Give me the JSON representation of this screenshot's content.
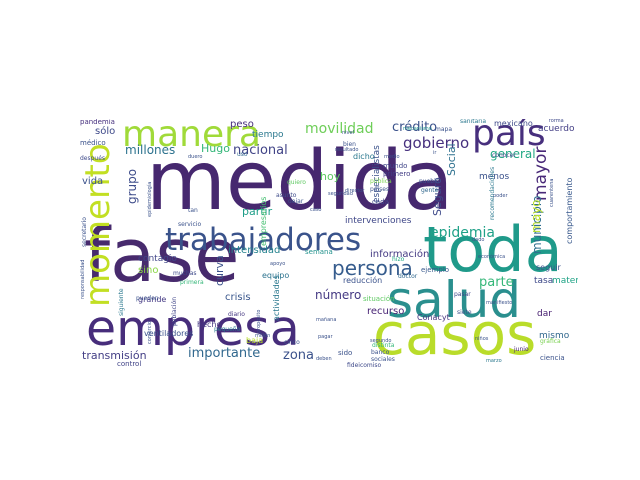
{
  "words": [
    {
      "id": "medida",
      "text": "medida",
      "color": "#46286f"
    },
    {
      "id": "fase",
      "text": "fase",
      "color": "#472a6d"
    },
    {
      "id": "toda",
      "text": "toda",
      "color": "#1f9a8a"
    },
    {
      "id": "casos",
      "text": "casos",
      "color": "#b9dc2a"
    },
    {
      "id": "empresa",
      "text": "empresa",
      "color": "#472d7b"
    },
    {
      "id": "salud",
      "text": "salud",
      "color": "#2a8f8e"
    },
    {
      "id": "manera",
      "text": "manera",
      "color": "#a0da39"
    },
    {
      "id": "pais",
      "text": "país",
      "color": "#472f7d"
    },
    {
      "id": "trabajadores",
      "text": "trabajadores",
      "color": "#3a538b"
    },
    {
      "id": "momento",
      "text": "momento",
      "color": "#c2df23"
    },
    {
      "id": "persona",
      "text": "persona",
      "color": "#365c8d"
    },
    {
      "id": "epidemia",
      "text": "epidemia",
      "color": "#1fa188"
    },
    {
      "id": "gobierno",
      "text": "gobierno",
      "color": "#46307e"
    },
    {
      "id": "movilidad",
      "text": "movilidad",
      "color": "#6ece58"
    },
    {
      "id": "credito",
      "text": "crédito",
      "color": "#3b528b"
    },
    {
      "id": "nacional",
      "text": "nacional",
      "color": "#414487"
    },
    {
      "id": "millones",
      "text": "millones",
      "color": "#2c728e"
    },
    {
      "id": "hugo",
      "text": "Hugo",
      "color": "#35b779"
    },
    {
      "id": "mayor",
      "text": "mayor",
      "color": "#482878"
    },
    {
      "id": "municipio",
      "text": "municipio",
      "color": "#2e6e8e"
    },
    {
      "id": "mayo",
      "text": "mayo",
      "color": "#b8de29"
    },
    {
      "id": "importante",
      "text": "importante",
      "color": "#31688e"
    },
    {
      "id": "zona",
      "text": "zona",
      "color": "#3b528b"
    },
    {
      "id": "numero",
      "text": "número",
      "color": "#443983"
    },
    {
      "id": "parte",
      "text": "parte",
      "color": "#35b779"
    },
    {
      "id": "seguro",
      "text": "Seguro",
      "color": "#3e4a89"
    },
    {
      "id": "social",
      "text": "Social",
      "color": "#2d708e"
    },
    {
      "id": "general",
      "text": "general",
      "color": "#22a884"
    },
    {
      "id": "informacion",
      "text": "información",
      "color": "#443a83"
    },
    {
      "id": "grupo",
      "text": "grupo",
      "color": "#3e4c8a"
    },
    {
      "id": "contagio",
      "text": "contagio",
      "color": "#404588"
    },
    {
      "id": "curva",
      "text": "curva",
      "color": "#3b528b"
    },
    {
      "id": "intensidad",
      "text": "intensidad",
      "color": "#25838e"
    },
    {
      "id": "transmision",
      "text": "transmisión",
      "color": "#433e85"
    },
    {
      "id": "recurso",
      "text": "recurso",
      "color": "#482475"
    },
    {
      "id": "crisis",
      "text": "crisis",
      "color": "#39568c"
    },
    {
      "id": "partir",
      "text": "partir",
      "color": "#1f9e89"
    },
    {
      "id": "sino",
      "text": "sino",
      "color": "#8bd646"
    },
    {
      "id": "hoy",
      "text": "hoy",
      "color": "#5ec962"
    },
    {
      "id": "peso",
      "text": "peso",
      "color": "#472d7b"
    },
    {
      "id": "vida",
      "text": "vida",
      "color": "#3b528b"
    },
    {
      "id": "solo",
      "text": "sólo",
      "color": "#3e4989"
    },
    {
      "id": "mismo",
      "text": "mismo",
      "color": "#31688e"
    },
    {
      "id": "tiempo",
      "text": "tiempo",
      "color": "#2a788e"
    },
    {
      "id": "dar",
      "text": "dar",
      "color": "#482071"
    },
    {
      "id": "menos",
      "text": "menos",
      "color": "#3b528b"
    },
    {
      "id": "comportamiento",
      "text": "comportamiento",
      "color": "#38588c"
    },
    {
      "id": "tasa",
      "text": "tasa",
      "color": "#3e4989"
    },
    {
      "id": "matematica",
      "text": "matemática",
      "color": "#20a386"
    },
    {
      "id": "seguir",
      "text": "seguir",
      "color": "#3b528b"
    },
    {
      "id": "acuerdo",
      "text": "acuerdo",
      "color": "#433e85"
    },
    {
      "id": "mexicano",
      "text": "mexicano",
      "color": "#3e4989"
    },
    {
      "id": "especialistas",
      "text": "especialistas",
      "color": "#3b528b"
    },
    {
      "id": "intervenciones",
      "text": "intervenciones",
      "color": "#3f4788"
    },
    {
      "id": "empresarios",
      "text": "empresarios",
      "color": "#44bf70"
    },
    {
      "id": "ventiladores",
      "text": "ventiladores",
      "color": "#3b528b"
    },
    {
      "id": "equipo",
      "text": "equipo",
      "color": "#2c738e"
    },
    {
      "id": "reduccion",
      "text": "reducción",
      "color": "#3b528b"
    },
    {
      "id": "situacion",
      "text": "situación",
      "color": "#5ec962"
    },
    {
      "id": "ejemplo",
      "text": "ejemplo",
      "color": "#38598c"
    },
    {
      "id": "grande",
      "text": "grande",
      "color": "#443983"
    },
    {
      "id": "hecho",
      "text": "hecho",
      "color": "#453781"
    },
    {
      "id": "actividades",
      "text": "actividades",
      "color": "#2a788e"
    },
    {
      "id": "conacyt",
      "text": "Conacyt",
      "color": "#46337e"
    },
    {
      "id": "control",
      "text": "control",
      "color": "#414487"
    },
    {
      "id": "ciencia",
      "text": "ciencia",
      "color": "#3b528b"
    },
    {
      "id": "junio",
      "text": "junio",
      "color": "#482374"
    },
    {
      "id": "semana",
      "text": "semana",
      "color": "#21918c"
    },
    {
      "id": "sido",
      "text": "sido",
      "color": "#3b528b"
    },
    {
      "id": "diario",
      "text": "diario",
      "color": "#453781"
    },
    {
      "id": "medico",
      "text": "médico",
      "color": "#3b528b"
    },
    {
      "id": "pandemia",
      "text": "pandemia",
      "color": "#46307e"
    },
    {
      "id": "despues",
      "text": "después",
      "color": "#3e4989"
    },
    {
      "id": "conocer",
      "text": "conocer",
      "color": "#404588"
    },
    {
      "id": "dicho",
      "text": "dicho",
      "color": "#2a788e"
    },
    {
      "id": "mundo",
      "text": "mundo",
      "color": "#404588"
    },
    {
      "id": "primero",
      "text": "primero",
      "color": "#433e85"
    },
    {
      "id": "cada",
      "text": "cada",
      "color": "#414487"
    },
    {
      "id": "publica",
      "text": "pública",
      "color": "#7ad151"
    },
    {
      "id": "paises",
      "text": "países",
      "color": "#3b528b"
    },
    {
      "id": "uso",
      "text": "uso",
      "color": "#31688e"
    },
    {
      "id": "servicio",
      "text": "servicio",
      "color": "#3b528b"
    },
    {
      "id": "asunto",
      "text": "asunto",
      "color": "#3e4c8a"
    },
    {
      "id": "dejar",
      "text": "dejar",
      "color": "#3b528b"
    },
    {
      "id": "quiero",
      "text": "quiero",
      "color": "#5ec962"
    },
    {
      "id": "muchas",
      "text": "muchas",
      "color": "#3e4989"
    },
    {
      "id": "primera",
      "text": "primera",
      "color": "#35b779"
    },
    {
      "id": "pueden",
      "text": "pueden",
      "color": "#3b528b"
    },
    {
      "id": "siguiente",
      "text": "siguiente",
      "color": "#2a788e"
    },
    {
      "id": "secretario",
      "text": "secretario",
      "color": "#3b528b"
    },
    {
      "id": "poblacion",
      "text": "población",
      "color": "#404588"
    },
    {
      "id": "fideicomiso",
      "text": "fideicomiso",
      "color": "#3e4989"
    },
    {
      "id": "sociales",
      "text": "sociales",
      "color": "#3b528b"
    },
    {
      "id": "distinta",
      "text": "distinta",
      "color": "#35b779"
    },
    {
      "id": "banco",
      "text": "banco",
      "color": "#3b528b"
    },
    {
      "id": "doctor",
      "text": "doctor",
      "color": "#31688e"
    },
    {
      "id": "hizo",
      "text": "hizo",
      "color": "#22a884"
    },
    {
      "id": "pueblo",
      "text": "pueblo",
      "color": "#3b528b"
    },
    {
      "id": "gente",
      "text": "gente",
      "color": "#31688e"
    },
    {
      "id": "siete",
      "text": "siete",
      "color": "#3b528b"
    },
    {
      "id": "pasar",
      "text": "pasar",
      "color": "#3e4989"
    },
    {
      "id": "marzo",
      "text": "marzo",
      "color": "#2a788e"
    },
    {
      "id": "grafica",
      "text": "gráfica",
      "color": "#7ad151"
    },
    {
      "id": "poder",
      "text": "poder",
      "color": "#3b528b"
    },
    {
      "id": "forma",
      "text": "forma",
      "color": "#3e4989"
    },
    {
      "id": "sanitaria",
      "text": "sanitaria",
      "color": "#2a788e"
    },
    {
      "id": "mapa",
      "text": "mapa",
      "color": "#3b528b"
    },
    {
      "id": "mecanismo",
      "text": "mecanismo",
      "color": "#21918c"
    },
    {
      "id": "nivel",
      "text": "nivel",
      "color": "#3b528b"
    },
    {
      "id": "bien",
      "text": "bien",
      "color": "#3b528b"
    },
    {
      "id": "medio",
      "text": "medio",
      "color": "#3b528b"
    },
    {
      "id": "ir",
      "text": "ir",
      "color": "#3b528b"
    },
    {
      "id": "director",
      "text": "director",
      "color": "#3b528b"
    },
    {
      "id": "seguridad",
      "text": "seguridad",
      "color": "#3b528b"
    },
    {
      "id": "resultado",
      "text": "resultado",
      "color": "#3b528b"
    },
    {
      "id": "ninos",
      "text": "niños",
      "color": "#3b528b"
    },
    {
      "id": "economica",
      "text": "económica",
      "color": "#3b528b"
    },
    {
      "id": "dado",
      "text": "dado",
      "color": "#3b528b"
    },
    {
      "id": "pequeno",
      "text": "pequeño",
      "color": "#2a788e"
    },
    {
      "id": "pagar",
      "text": "pagar",
      "color": "#3b528b"
    },
    {
      "id": "mananaa",
      "text": "mañana",
      "color": "#3b528b"
    },
    {
      "id": "deben",
      "text": "deben",
      "color": "#3b528b"
    },
    {
      "id": "cinco",
      "text": "cinco",
      "color": "#3b528b"
    },
    {
      "id": "comercio",
      "text": "comercio",
      "color": "#3b528b"
    },
    {
      "id": "apoyo",
      "text": "apoyo",
      "color": "#3b528b"
    },
    {
      "id": "responsabilidad",
      "text": "responsabilidad",
      "color": "#3b528b"
    },
    {
      "id": "epidemiologia",
      "text": "epidemiología",
      "color": "#3b528b"
    },
    {
      "id": "duero",
      "text": "duero",
      "color": "#3b528b"
    },
    {
      "id": "proposito",
      "text": "propósito",
      "color": "#3b528b"
    },
    {
      "id": "manifiesto",
      "text": "manifiesto",
      "color": "#3b528b"
    },
    {
      "id": "caso",
      "text": "caso",
      "color": "#3b528b"
    },
    {
      "id": "segundo",
      "text": "segundo",
      "color": "#3b528b"
    },
    {
      "id": "recomendaciones",
      "text": "recomendaciones",
      "color": "#2a788e"
    },
    {
      "id": "cuarentena",
      "text": "cuarentena",
      "color": "#3b528b"
    },
    {
      "id": "tan",
      "text": "tan",
      "color": "#3b528b"
    },
    {
      "id": "baja",
      "text": "baja",
      "color": "#b8de29"
    },
    {
      "id": "millon",
      "text": "millón",
      "color": "#3b528b"
    }
  ]
}
